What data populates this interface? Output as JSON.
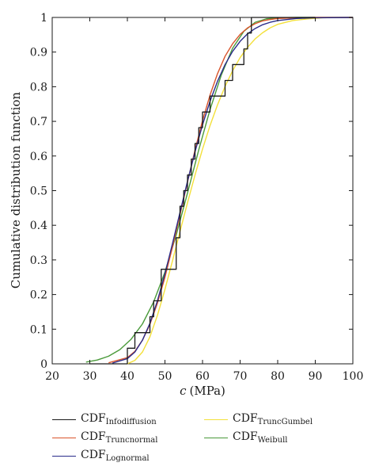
{
  "chart_data": {
    "type": "line",
    "xlabel_var": "c",
    "xlabel_unit": "(MPa)",
    "ylabel": "Cumulative distribution function",
    "xlim": [
      20,
      100
    ],
    "ylim": [
      0,
      1
    ],
    "x_ticks": [
      "20",
      "30",
      "40",
      "50",
      "60",
      "70",
      "80",
      "90",
      "100"
    ],
    "y_ticks": [
      "0",
      "0.1",
      "0.2",
      "0.3",
      "0.4",
      "0.5",
      "0.6",
      "0.7",
      "0.8",
      "0.9",
      "1"
    ],
    "grid": false,
    "legend_position": "bottom",
    "series": [
      {
        "name": "CDF",
        "sub": "Infodiffusion",
        "color": "#1a1a1a",
        "kind": "step",
        "x": [
          30,
          40,
          41,
          42,
          44,
          46,
          47,
          49,
          53,
          54,
          55,
          56,
          57,
          58,
          59,
          60,
          62,
          66,
          68,
          71,
          72,
          73,
          90
        ],
        "y": [
          0.0,
          0.045,
          0.045,
          0.09,
          0.09,
          0.136,
          0.182,
          0.273,
          0.364,
          0.455,
          0.5,
          0.545,
          0.591,
          0.636,
          0.682,
          0.727,
          0.773,
          0.818,
          0.864,
          0.909,
          0.955,
          1.0,
          1.0
        ]
      },
      {
        "name": "CDF",
        "sub": "Truncnormal",
        "color": "#d9542b",
        "kind": "line",
        "x": [
          35,
          40,
          42,
          44,
          46,
          48,
          50,
          52,
          54,
          56,
          58,
          60,
          62,
          64,
          66,
          68,
          70,
          72,
          74,
          76,
          78,
          80,
          85,
          90,
          100
        ],
        "y": [
          0.003,
          0.018,
          0.036,
          0.068,
          0.114,
          0.175,
          0.25,
          0.337,
          0.43,
          0.525,
          0.617,
          0.702,
          0.776,
          0.838,
          0.888,
          0.924,
          0.951,
          0.97,
          0.982,
          0.99,
          0.994,
          0.997,
          0.999,
          1.0,
          1.0
        ]
      },
      {
        "name": "CDF",
        "sub": "Lognormal",
        "color": "#2a2c8a",
        "kind": "line",
        "x": [
          36,
          40,
          42,
          44,
          46,
          48,
          50,
          52,
          54,
          56,
          58,
          60,
          62,
          64,
          66,
          68,
          70,
          72,
          74,
          76,
          78,
          80,
          85,
          90,
          100
        ],
        "y": [
          0.002,
          0.015,
          0.034,
          0.068,
          0.117,
          0.182,
          0.26,
          0.347,
          0.437,
          0.527,
          0.612,
          0.69,
          0.758,
          0.816,
          0.864,
          0.902,
          0.931,
          0.953,
          0.968,
          0.979,
          0.986,
          0.991,
          0.997,
          0.999,
          1.0
        ]
      },
      {
        "name": "CDF",
        "sub": "TruncGumbel",
        "color": "#f3e03a",
        "kind": "line",
        "x": [
          40,
          42,
          44,
          46,
          48,
          50,
          52,
          54,
          56,
          58,
          60,
          62,
          64,
          66,
          68,
          70,
          72,
          74,
          76,
          78,
          80,
          84,
          88,
          92,
          100
        ],
        "y": [
          0.0,
          0.01,
          0.034,
          0.078,
          0.14,
          0.215,
          0.297,
          0.382,
          0.465,
          0.545,
          0.62,
          0.688,
          0.748,
          0.801,
          0.846,
          0.884,
          0.914,
          0.938,
          0.956,
          0.97,
          0.98,
          0.991,
          0.996,
          0.999,
          1.0
        ]
      },
      {
        "name": "CDF",
        "sub": "Weibull",
        "color": "#4a9a3a",
        "kind": "line",
        "x": [
          29,
          32,
          35,
          38,
          41,
          44,
          47,
          50,
          53,
          56,
          59,
          62,
          65,
          68,
          71,
          74,
          77,
          80,
          85,
          100
        ],
        "y": [
          0.005,
          0.011,
          0.022,
          0.041,
          0.071,
          0.115,
          0.179,
          0.265,
          0.372,
          0.493,
          0.618,
          0.734,
          0.834,
          0.911,
          0.96,
          0.986,
          0.996,
          0.999,
          1.0,
          1.0
        ]
      }
    ]
  }
}
